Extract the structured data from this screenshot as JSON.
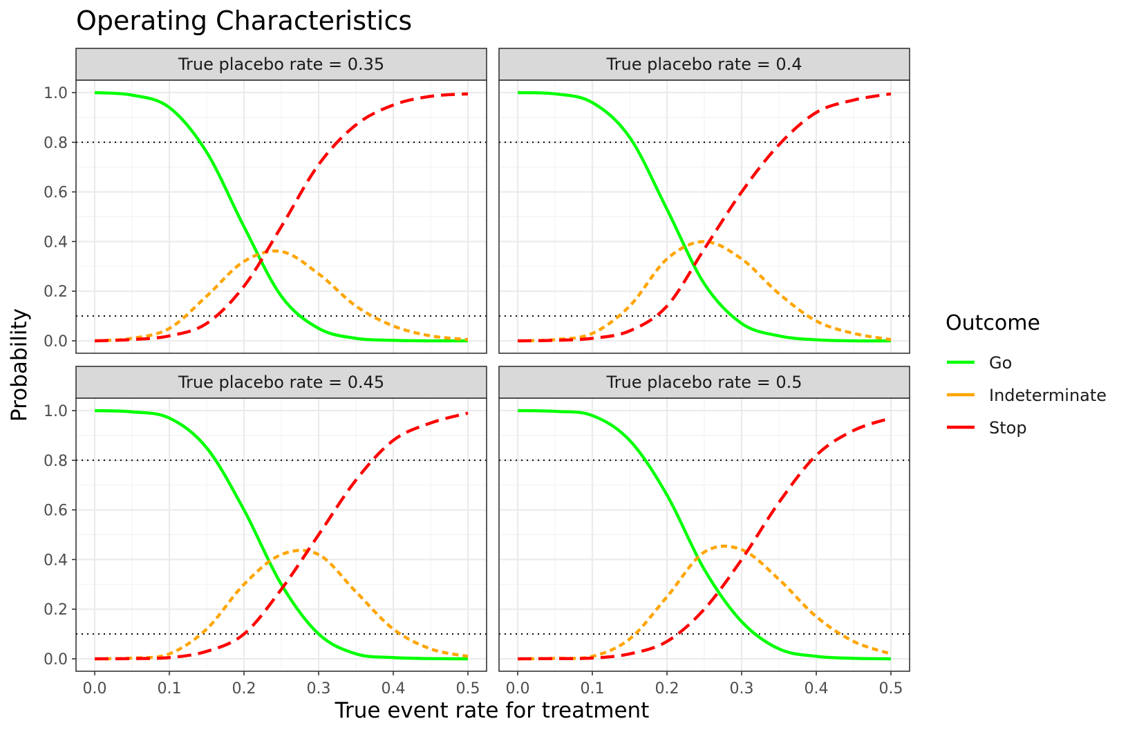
{
  "chart_data": {
    "type": "line",
    "title": "Operating Characteristics",
    "xlabel": "True event rate for treatment",
    "ylabel": "Probability",
    "xlim": [
      -0.025,
      0.525
    ],
    "ylim": [
      -0.05,
      1.05
    ],
    "x_ticks": [
      "0.0",
      "0.1",
      "0.2",
      "0.3",
      "0.4",
      "0.5"
    ],
    "x_tick_values": [
      0,
      0.1,
      0.2,
      0.3,
      0.4,
      0.5
    ],
    "y_ticks": [
      "0.0",
      "0.2",
      "0.4",
      "0.6",
      "0.8",
      "1.0"
    ],
    "y_tick_values": [
      0,
      0.2,
      0.4,
      0.6,
      0.8,
      1.0
    ],
    "reference_lines": [
      0.1,
      0.8
    ],
    "grid": true,
    "legend": {
      "title": "Outcome",
      "position": "right",
      "entries": [
        {
          "name": "Go",
          "color": "#00ff00",
          "dash": "solid"
        },
        {
          "name": "Indeterminate",
          "color": "#ffa500",
          "dash": "dotted"
        },
        {
          "name": "Stop",
          "color": "#ff0000",
          "dash": "dashed"
        }
      ]
    },
    "x": [
      0,
      0.05,
      0.1,
      0.15,
      0.2,
      0.25,
      0.3,
      0.35,
      0.4,
      0.45,
      0.5
    ],
    "panels": [
      {
        "label": "True placebo rate = 0.35",
        "series": [
          {
            "name": "Go",
            "values": [
              1.0,
              0.99,
              0.94,
              0.76,
              0.46,
              0.18,
              0.05,
              0.01,
              0.002,
              0.0,
              0.0
            ]
          },
          {
            "name": "Indeterminate",
            "values": [
              0.0,
              0.01,
              0.05,
              0.18,
              0.32,
              0.36,
              0.27,
              0.14,
              0.06,
              0.02,
              0.005
            ]
          },
          {
            "name": "Stop",
            "values": [
              0.0,
              0.005,
              0.02,
              0.07,
              0.22,
              0.46,
              0.71,
              0.87,
              0.95,
              0.985,
              0.995
            ]
          }
        ]
      },
      {
        "label": "True placebo rate = 0.4",
        "series": [
          {
            "name": "Go",
            "values": [
              1.0,
              0.995,
              0.96,
              0.82,
              0.53,
              0.23,
              0.07,
              0.02,
              0.004,
              0.0,
              0.0
            ]
          },
          {
            "name": "Indeterminate",
            "values": [
              0.0,
              0.005,
              0.03,
              0.14,
              0.33,
              0.4,
              0.33,
              0.19,
              0.08,
              0.03,
              0.005
            ]
          },
          {
            "name": "Stop",
            "values": [
              0.0,
              0.002,
              0.01,
              0.04,
              0.14,
              0.37,
              0.6,
              0.79,
              0.92,
              0.97,
              0.995
            ]
          }
        ]
      },
      {
        "label": "True placebo rate = 0.45",
        "series": [
          {
            "name": "Go",
            "values": [
              1.0,
              0.995,
              0.97,
              0.85,
              0.6,
              0.3,
              0.1,
              0.02,
              0.005,
              0.001,
              0.0
            ]
          },
          {
            "name": "Indeterminate",
            "values": [
              0.0,
              0.003,
              0.02,
              0.12,
              0.3,
              0.42,
              0.42,
              0.27,
              0.12,
              0.04,
              0.01
            ]
          },
          {
            "name": "Stop",
            "values": [
              0.0,
              0.001,
              0.005,
              0.03,
              0.1,
              0.28,
              0.5,
              0.72,
              0.88,
              0.95,
              0.99
            ]
          }
        ]
      },
      {
        "label": "True placebo rate = 0.5",
        "series": [
          {
            "name": "Go",
            "values": [
              1.0,
              0.997,
              0.98,
              0.88,
              0.66,
              0.36,
              0.15,
              0.04,
              0.01,
              0.002,
              0.0
            ]
          },
          {
            "name": "Indeterminate",
            "values": [
              0.0,
              0.002,
              0.01,
              0.08,
              0.25,
              0.43,
              0.44,
              0.32,
              0.17,
              0.07,
              0.02
            ]
          },
          {
            "name": "Stop",
            "values": [
              0.0,
              0.001,
              0.003,
              0.02,
              0.07,
              0.2,
              0.4,
              0.63,
              0.82,
              0.92,
              0.97
            ]
          }
        ]
      }
    ]
  }
}
